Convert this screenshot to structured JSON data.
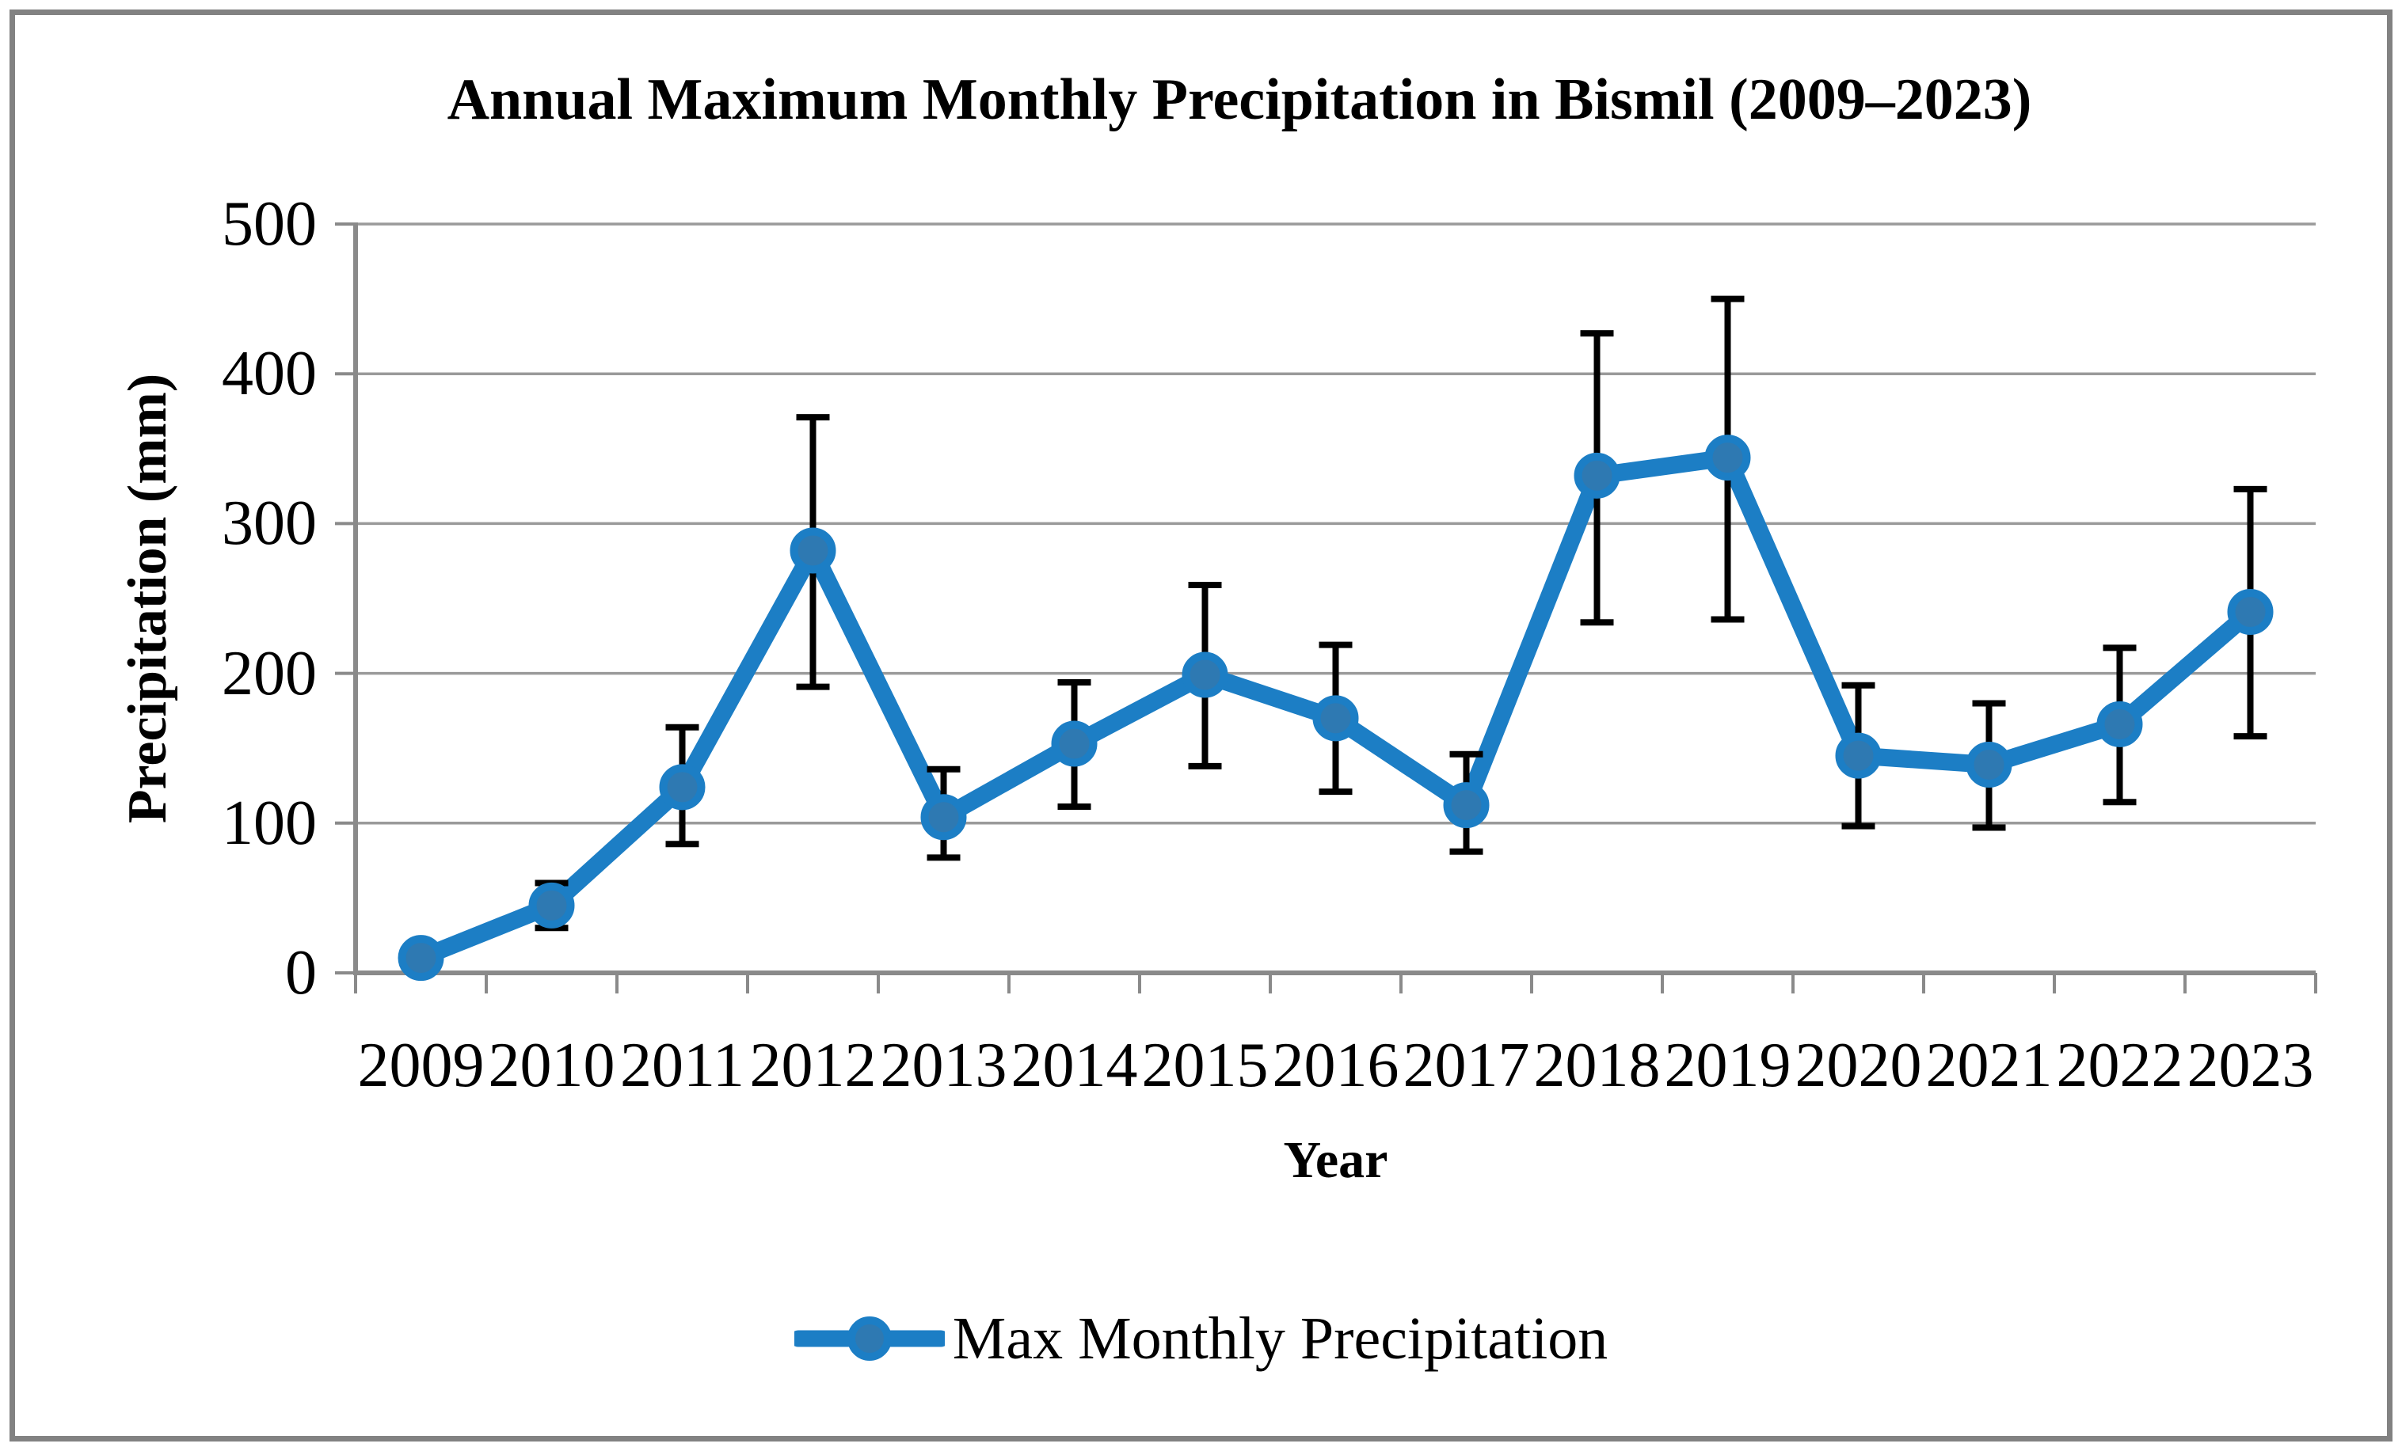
{
  "figure": {
    "title": "Annual Maximum Monthly Precipitation in Bismil (2009–2023)",
    "x_axis_title": "Year",
    "y_axis_title": "Precipitation (mm)",
    "legend_label": "Max Monthly Precipitation"
  },
  "chart_data": {
    "type": "line",
    "title": "Annual Maximum Monthly Precipitation in Bismil (2009–2023)",
    "xlabel": "Year",
    "ylabel": "Precipitation (mm)",
    "categories": [
      "2009",
      "2010",
      "2011",
      "2012",
      "2013",
      "2014",
      "2015",
      "2016",
      "2017",
      "2018",
      "2019",
      "2020",
      "2021",
      "2022",
      "2023"
    ],
    "series": [
      {
        "name": "Max Monthly Precipitation",
        "values": [
          10,
          45,
          124,
          282,
          104,
          153,
          199,
          170,
          112,
          332,
          344,
          145,
          139,
          166,
          241
        ],
        "error_low": [
          null,
          30,
          86,
          191,
          77,
          111,
          138,
          121,
          81,
          234,
          236,
          98,
          97,
          114,
          158
        ],
        "error_high": [
          null,
          60,
          164,
          371,
          136,
          194,
          259,
          219,
          146,
          427,
          450,
          192,
          180,
          217,
          323
        ]
      }
    ],
    "ylim": [
      0,
      500
    ],
    "y_ticks": [
      0,
      100,
      200,
      300,
      400,
      500
    ],
    "grid": "horizontal-major",
    "legend_position": "bottom-center",
    "marker": "circle",
    "colors": {
      "line": "#1C7EC5",
      "marker_fill": "#2E79B2",
      "error_bar": "#000000",
      "gridline": "#9A9A9A",
      "axis": "#8A8A8A",
      "figure_border": "#828282",
      "text": "#000000"
    }
  }
}
